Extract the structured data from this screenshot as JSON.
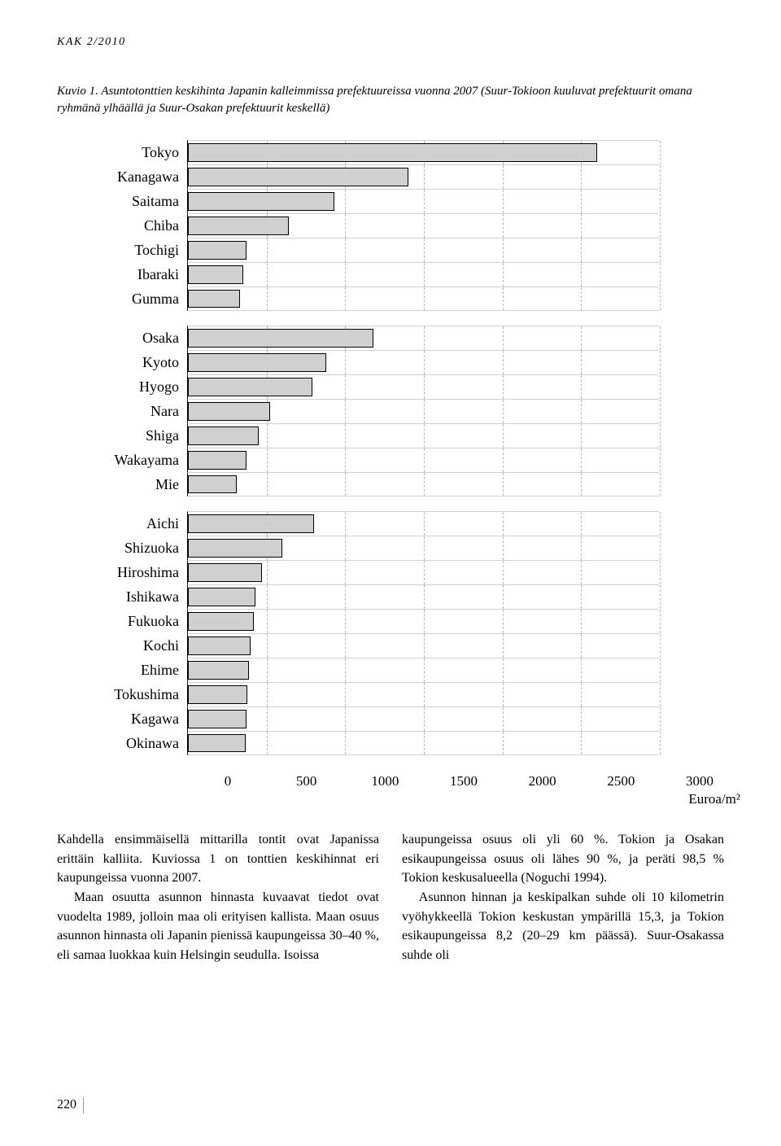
{
  "header": "KAK 2/2010",
  "figure_caption": "Kuvio 1. Asuntotonttien keskihinta Japanin kalleimmissa prefektuureissa vuonna 2007 (Suur-Tokioon kuuluvat prefektuurit omana ryhmänä ylhäällä ja Suur-Osakan prefektuurit keskellä)",
  "chart": {
    "type": "bar",
    "xlim": [
      0,
      3000
    ],
    "xtick_step": 500,
    "xticks": [
      "0",
      "500",
      "1000",
      "1500",
      "2000",
      "2500",
      "3000"
    ],
    "x_unit": "Euroa/m²",
    "bar_fill": "#d0d0d0",
    "bar_border": "#000000",
    "grid_color": "#b8b8b8",
    "label_fontsize": 18,
    "tick_fontsize": 17,
    "groups": [
      {
        "bars": [
          {
            "label": "Tokyo",
            "value": 2600
          },
          {
            "label": "Kanagawa",
            "value": 1400
          },
          {
            "label": "Saitama",
            "value": 930
          },
          {
            "label": "Chiba",
            "value": 640
          },
          {
            "label": "Tochigi",
            "value": 370
          },
          {
            "label": "Ibaraki",
            "value": 350
          },
          {
            "label": "Gumma",
            "value": 330
          }
        ]
      },
      {
        "bars": [
          {
            "label": "Osaka",
            "value": 1180
          },
          {
            "label": "Kyoto",
            "value": 880
          },
          {
            "label": "Hyogo",
            "value": 790
          },
          {
            "label": "Nara",
            "value": 520
          },
          {
            "label": "Shiga",
            "value": 450
          },
          {
            "label": "Wakayama",
            "value": 370
          },
          {
            "label": "Mie",
            "value": 310
          }
        ]
      },
      {
        "bars": [
          {
            "label": "Aichi",
            "value": 800
          },
          {
            "label": "Shizuoka",
            "value": 600
          },
          {
            "label": "Hiroshima",
            "value": 470
          },
          {
            "label": "Ishikawa",
            "value": 430
          },
          {
            "label": "Fukuoka",
            "value": 420
          },
          {
            "label": "Kochi",
            "value": 400
          },
          {
            "label": "Ehime",
            "value": 390
          },
          {
            "label": "Tokushima",
            "value": 380
          },
          {
            "label": "Kagawa",
            "value": 370
          },
          {
            "label": "Okinawa",
            "value": 365
          }
        ]
      }
    ]
  },
  "body": {
    "left": [
      "Kahdella ensimmäisellä mittarilla tontit ovat Japanissa erittäin kalliita. Kuviossa 1 on tonttien keskihinnat eri kaupungeissa vuonna 2007.",
      "Maan osuutta asunnon hinnasta kuvaavat tiedot ovat vuodelta 1989, jolloin maa oli erityisen kallista. Maan osuus asunnon hinnasta oli Japanin pienissä kaupungeissa 30–40 %, eli samaa luokkaa kuin Helsingin seudulla. Isoissa"
    ],
    "right": [
      "kaupungeissa osuus oli yli 60 %. Tokion ja Osakan esikaupungeissa osuus oli lähes 90 %, ja peräti 98,5 % Tokion keskusalueella (Noguchi 1994).",
      "Asunnon hinnan ja keskipalkan suhde oli 10 kilometrin vyöhykkeellä Tokion keskustan ympärillä 15,3, ja Tokion esikaupungeissa 8,2 (20–29 km päässä). Suur-Osakassa suhde oli"
    ]
  },
  "page_number": "220"
}
